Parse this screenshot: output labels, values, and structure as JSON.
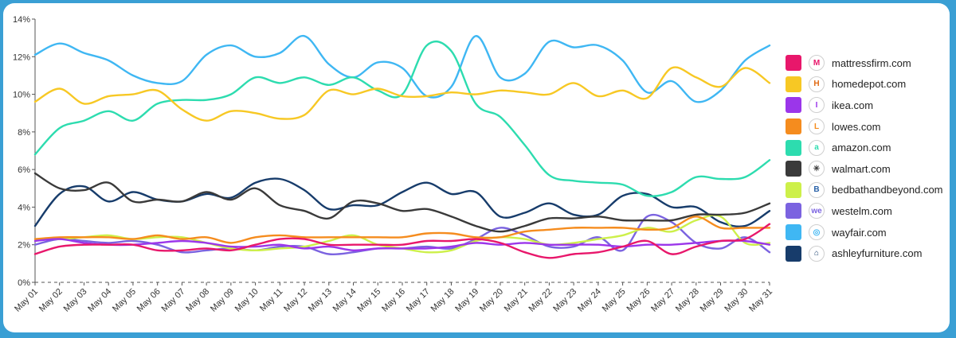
{
  "chart_data": {
    "type": "line",
    "title": "",
    "xlabel": "",
    "ylabel": "",
    "ylim": [
      0,
      14
    ],
    "y_ticks": [
      "0%",
      "2%",
      "4%",
      "6%",
      "8%",
      "10%",
      "12%",
      "14%"
    ],
    "grid": false,
    "legend_position": "right",
    "categories": [
      "May 01",
      "May 02",
      "May 03",
      "May 04",
      "May 05",
      "May 06",
      "May 07",
      "May 08",
      "May 09",
      "May 10",
      "May 11",
      "May 12",
      "May 13",
      "May 14",
      "May 15",
      "May 16",
      "May 17",
      "May 18",
      "May 19",
      "May 20",
      "May 21",
      "May 22",
      "May 23",
      "May 24",
      "May 25",
      "May 26",
      "May 27",
      "May 28",
      "May 29",
      "May 30",
      "May 31"
    ],
    "series": [
      {
        "name": "mattressfirm.com",
        "color": "#e8176b",
        "icon": "mattressfirm-logo-icon",
        "icon_glyph": "M",
        "values": [
          1.5,
          1.9,
          2.0,
          2.0,
          2.0,
          1.7,
          1.7,
          1.8,
          1.7,
          2.0,
          2.3,
          2.3,
          2.0,
          2.0,
          2.0,
          2.0,
          2.2,
          2.2,
          2.3,
          2.1,
          1.6,
          1.3,
          1.5,
          1.6,
          1.9,
          2.2,
          1.5,
          1.9,
          2.2,
          2.3,
          3.1
        ]
      },
      {
        "name": "homedepot.com",
        "color": "#f7c824",
        "icon": "homedepot-logo-icon",
        "icon_glyph": "H",
        "values": [
          9.6,
          10.3,
          9.5,
          9.9,
          10.0,
          10.2,
          9.2,
          8.6,
          9.1,
          9.0,
          8.7,
          8.9,
          10.2,
          10.0,
          10.3,
          9.9,
          9.9,
          10.1,
          10.0,
          10.2,
          10.1,
          10.0,
          10.6,
          9.9,
          10.2,
          9.8,
          11.4,
          10.9,
          10.4,
          11.4,
          10.6
        ]
      },
      {
        "name": "ikea.com",
        "color": "#9b36ea",
        "icon": "ikea-logo-icon",
        "icon_glyph": "I",
        "values": [
          2.2,
          2.3,
          2.1,
          2.0,
          2.0,
          2.1,
          2.2,
          2.1,
          1.9,
          1.9,
          2.0,
          1.8,
          1.9,
          1.7,
          1.8,
          1.8,
          1.8,
          1.9,
          2.1,
          2.0,
          2.1,
          2.0,
          2.0,
          2.0,
          1.9,
          2.0,
          2.0,
          2.1,
          2.2,
          2.2,
          2.0
        ]
      },
      {
        "name": "lowes.com",
        "color": "#f58c1e",
        "icon": "lowes-logo-icon",
        "icon_glyph": "L",
        "values": [
          2.3,
          2.4,
          2.4,
          2.4,
          2.3,
          2.5,
          2.3,
          2.4,
          2.1,
          2.4,
          2.5,
          2.4,
          2.4,
          2.4,
          2.4,
          2.4,
          2.6,
          2.6,
          2.4,
          2.4,
          2.7,
          2.8,
          2.9,
          2.9,
          2.9,
          2.8,
          2.9,
          3.5,
          2.9,
          2.9,
          2.9
        ]
      },
      {
        "name": "amazon.com",
        "color": "#2ddcaf",
        "icon": "amazon-logo-icon",
        "icon_glyph": "a",
        "values": [
          6.8,
          8.2,
          8.6,
          9.1,
          8.6,
          9.5,
          9.7,
          9.7,
          10.0,
          10.9,
          10.6,
          10.9,
          10.5,
          10.9,
          10.2,
          10.0,
          12.6,
          12.3,
          9.5,
          8.8,
          7.3,
          5.7,
          5.4,
          5.3,
          5.2,
          4.6,
          4.8,
          5.6,
          5.5,
          5.6,
          6.5
        ]
      },
      {
        "name": "walmart.com",
        "color": "#3a3a3a",
        "icon": "walmart-spark-icon",
        "icon_glyph": "✳",
        "values": [
          5.8,
          5.0,
          4.9,
          5.3,
          4.3,
          4.4,
          4.3,
          4.8,
          4.4,
          5.0,
          4.1,
          3.8,
          3.4,
          4.3,
          4.2,
          3.8,
          3.9,
          3.5,
          3.0,
          2.7,
          3.0,
          3.4,
          3.4,
          3.5,
          3.3,
          3.3,
          3.3,
          3.6,
          3.6,
          3.7,
          4.2
        ]
      },
      {
        "name": "bedbathandbeyond.com",
        "color": "#cdf04a",
        "icon": "bedbathandbeyond-logo-icon",
        "icon_glyph": "B",
        "values": [
          2.3,
          2.3,
          2.4,
          2.5,
          2.3,
          2.4,
          2.4,
          2.1,
          1.8,
          1.7,
          1.8,
          1.9,
          2.2,
          2.5,
          2.0,
          1.8,
          1.6,
          1.7,
          2.2,
          2.4,
          2.3,
          2.0,
          2.1,
          2.3,
          2.5,
          2.9,
          2.7,
          3.3,
          3.5,
          2.1,
          2.1
        ]
      },
      {
        "name": "westelm.com",
        "color": "#7b63e0",
        "icon": "westelm-logo-icon",
        "icon_glyph": "we",
        "values": [
          2.0,
          2.3,
          2.2,
          2.1,
          2.2,
          2.0,
          1.6,
          1.7,
          1.8,
          1.7,
          1.9,
          1.9,
          1.5,
          1.6,
          1.8,
          1.8,
          1.9,
          1.8,
          2.3,
          2.9,
          2.5,
          1.9,
          1.9,
          2.4,
          1.7,
          3.5,
          3.2,
          2.1,
          1.8,
          2.4,
          1.6
        ]
      },
      {
        "name": "wayfair.com",
        "color": "#3fb7f3",
        "icon": "wayfair-logo-icon",
        "icon_glyph": "◎",
        "values": [
          12.1,
          12.7,
          12.2,
          11.8,
          11.0,
          10.6,
          10.7,
          12.1,
          12.6,
          12.0,
          12.2,
          13.1,
          11.6,
          10.9,
          11.7,
          11.4,
          9.9,
          10.4,
          13.1,
          10.9,
          11.1,
          12.8,
          12.5,
          12.6,
          11.8,
          10.1,
          10.7,
          9.6,
          10.2,
          11.8,
          12.6
        ]
      },
      {
        "name": "ashleyfurniture.com",
        "color": "#173c6b",
        "icon": "ashleyfurniture-logo-icon",
        "icon_glyph": "⌂",
        "values": [
          3.0,
          4.7,
          5.1,
          4.3,
          4.8,
          4.4,
          4.3,
          4.7,
          4.5,
          5.3,
          5.5,
          4.9,
          3.9,
          4.1,
          4.1,
          4.8,
          5.3,
          4.7,
          4.8,
          3.5,
          3.7,
          4.2,
          3.6,
          3.6,
          4.6,
          4.7,
          4.0,
          4.0,
          3.2,
          3.0,
          3.8
        ]
      }
    ]
  }
}
